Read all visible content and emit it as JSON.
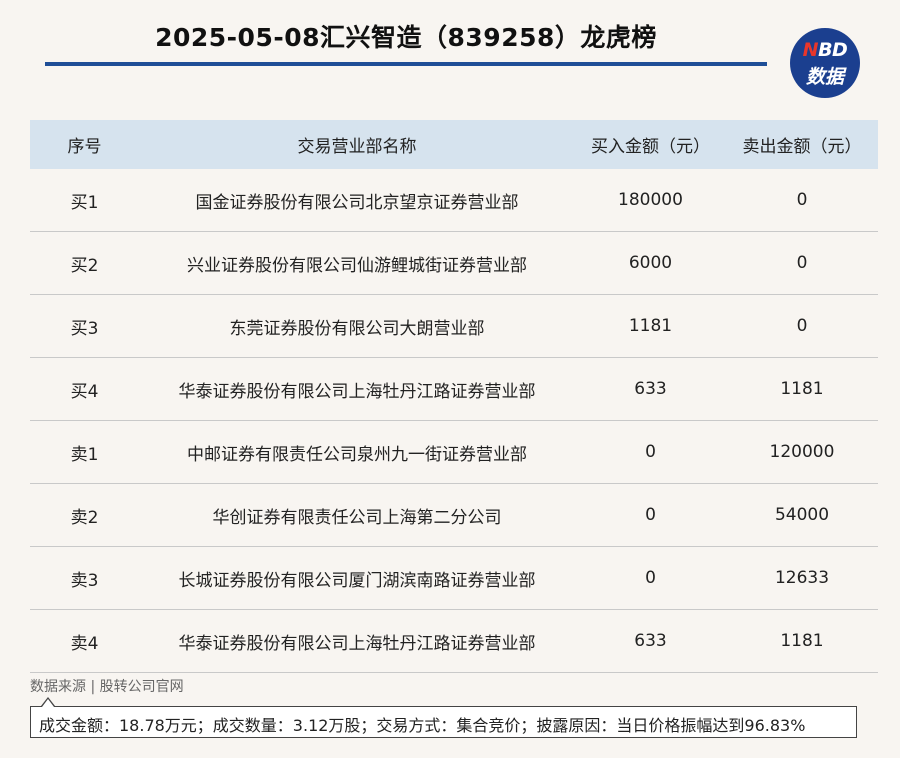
{
  "title": "2025-05-08汇兴智造（839258）龙虎榜",
  "logo": {
    "n": "N",
    "bd": "BD",
    "line2": "数据"
  },
  "table": {
    "headers": [
      "序号",
      "交易营业部名称",
      "买入金额（元）",
      "卖出金额（元）"
    ],
    "rows": [
      [
        "买1",
        "国金证券股份有限公司北京望京证券营业部",
        "180000",
        "0"
      ],
      [
        "买2",
        "兴业证券股份有限公司仙游鲤城街证券营业部",
        "6000",
        "0"
      ],
      [
        "买3",
        "东莞证券股份有限公司大朗营业部",
        "1181",
        "0"
      ],
      [
        "买4",
        "华泰证券股份有限公司上海牡丹江路证券营业部",
        "633",
        "1181"
      ],
      [
        "卖1",
        "中邮证券有限责任公司泉州九一街证券营业部",
        "0",
        "120000"
      ],
      [
        "卖2",
        "华创证券有限责任公司上海第二分公司",
        "0",
        "54000"
      ],
      [
        "卖3",
        "长城证券股份有限公司厦门湖滨南路证券营业部",
        "0",
        "12633"
      ],
      [
        "卖4",
        "华泰证券股份有限公司上海牡丹江路证券营业部",
        "633",
        "1181"
      ]
    ]
  },
  "source": "数据来源 | 股转公司官网",
  "note": "成交金额：18.78万元；成交数量：3.12万股；交易方式：集合竞价；披露原因：当日价格振幅达到96.83%"
}
